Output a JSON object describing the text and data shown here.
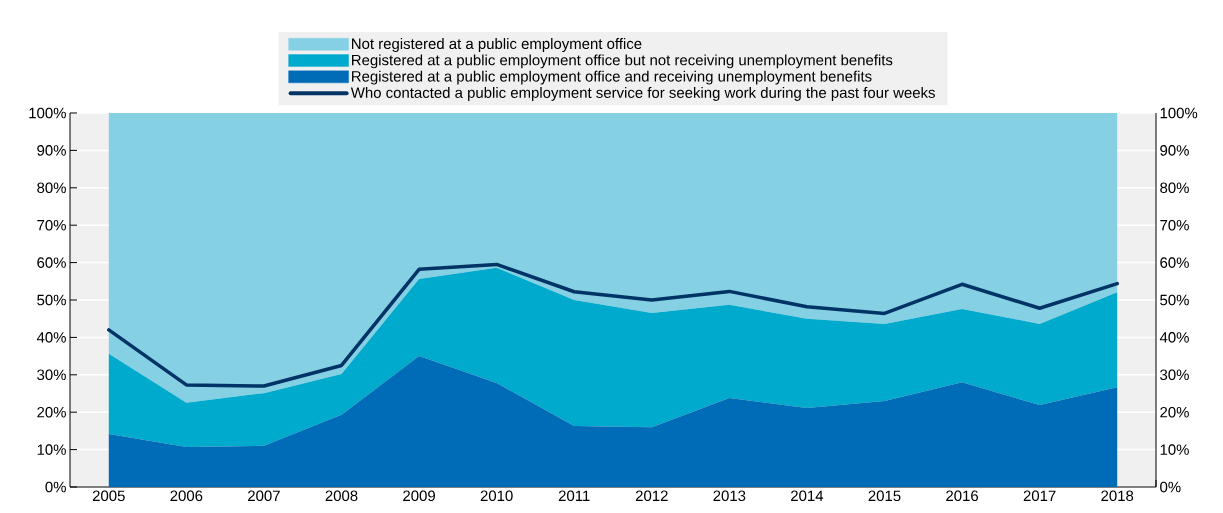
{
  "chart_data": {
    "type": "area",
    "stacked": true,
    "categories": [
      "2005",
      "2006",
      "2007",
      "2008",
      "2009",
      "2010",
      "2011",
      "2012",
      "2013",
      "2014",
      "2015",
      "2016",
      "2017",
      "2018"
    ],
    "series": [
      {
        "name": "Registered at a public employment office and receiving unemployment benefits",
        "color": "#006bb6",
        "values": [
          14.2,
          10.7,
          11,
          19.3,
          35,
          27.8,
          16.3,
          16,
          23.8,
          21.1,
          23,
          28,
          21.9,
          26.7
        ]
      },
      {
        "name": "Registered at a public employment office but not receiving unemployment benefits",
        "color": "#00aacc",
        "values": [
          21.4,
          11.8,
          14.1,
          10.9,
          20.6,
          30.8,
          33.7,
          30.5,
          24.9,
          23.9,
          20.6,
          19.6,
          21.7,
          25.4
        ]
      },
      {
        "name": "Not registered at a public employment office",
        "color": "#86d0e4",
        "values": [
          64.4,
          77.5,
          74.9,
          69.8,
          44.4,
          41.4,
          50,
          53.5,
          51.3,
          55,
          56.4,
          52.4,
          56.4,
          47.9
        ]
      },
      {
        "name": "Who contacted a public employment service for seeking work during the past four weeks",
        "type": "line",
        "color": "#003366",
        "values": [
          42,
          27.3,
          27,
          32.5,
          58.2,
          59.5,
          52.2,
          50,
          52.3,
          48.2,
          46.4,
          54.2,
          47.8,
          54.4
        ]
      }
    ],
    "ylim": [
      0,
      100
    ],
    "yticks": [
      {
        "value": 0,
        "label": "0%"
      },
      {
        "value": 10,
        "label": "10%"
      },
      {
        "value": 20,
        "label": "20%"
      },
      {
        "value": 30,
        "label": "30%"
      },
      {
        "value": 40,
        "label": "40%"
      },
      {
        "value": 50,
        "label": "50%"
      },
      {
        "value": 60,
        "label": "60%"
      },
      {
        "value": 70,
        "label": "70%"
      },
      {
        "value": 80,
        "label": "80%"
      },
      {
        "value": 90,
        "label": "90%"
      },
      {
        "value": 100,
        "label": "100%"
      }
    ],
    "y2lim": [
      0,
      100
    ],
    "y2ticks": [
      {
        "value": 0,
        "label": "0%"
      },
      {
        "value": 10,
        "label": "10%"
      },
      {
        "value": 20,
        "label": "20%"
      },
      {
        "value": 30,
        "label": "30%"
      },
      {
        "value": 40,
        "label": "40%"
      },
      {
        "value": 50,
        "label": "50%"
      },
      {
        "value": 60,
        "label": "60%"
      },
      {
        "value": 70,
        "label": "70%"
      },
      {
        "value": 80,
        "label": "80%"
      },
      {
        "value": 90,
        "label": "90%"
      },
      {
        "value": 100,
        "label": "100%"
      }
    ],
    "grid": "y",
    "legend": "top"
  }
}
